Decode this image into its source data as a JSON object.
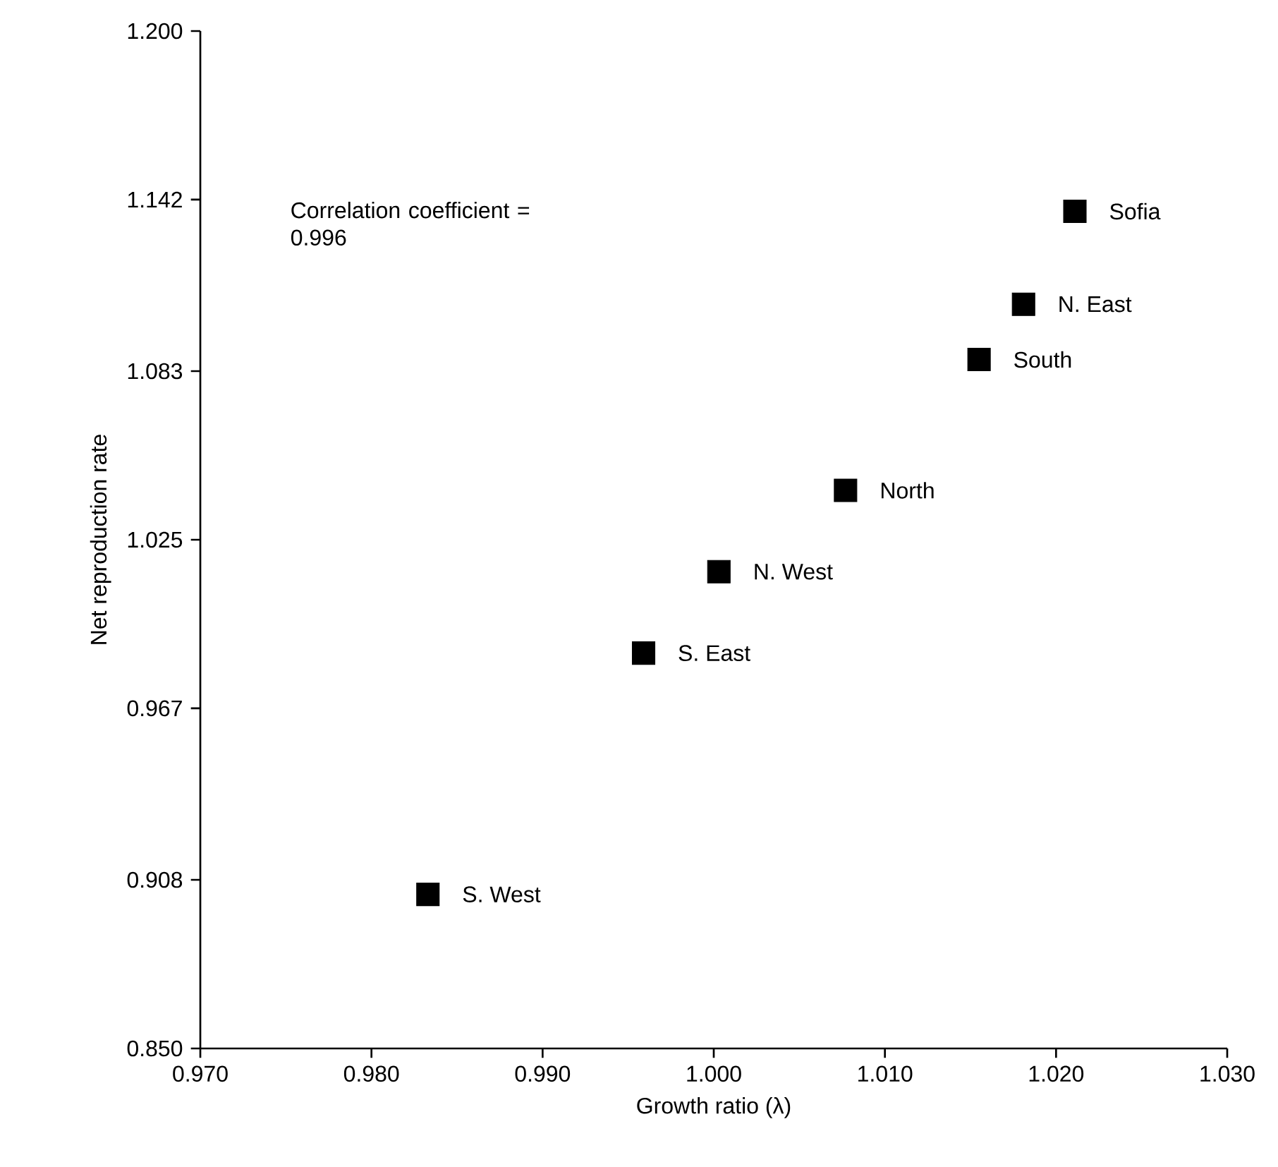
{
  "chart_data": {
    "type": "scatter",
    "xlabel": "Growth ratio (λ)",
    "ylabel": "Net reproduction rate",
    "x": [
      1.0211,
      1.0181,
      1.0155,
      1.0077,
      1.0003,
      0.9959,
      0.9833
    ],
    "values": [
      1.138,
      1.106,
      1.087,
      1.042,
      1.014,
      0.986,
      0.903
    ],
    "color": "#000000",
    "marker": "square",
    "xlim": [
      0.97,
      1.03
    ],
    "ylim": [
      0.85,
      1.2
    ],
    "xticks": [
      {
        "value": 0.97,
        "label": "0.970"
      },
      {
        "value": 0.98,
        "label": "0.980"
      },
      {
        "value": 0.99,
        "label": "0.990"
      },
      {
        "value": 1.0,
        "label": "1.000"
      },
      {
        "value": 1.01,
        "label": "1.010"
      },
      {
        "value": 1.02,
        "label": "1.020"
      },
      {
        "value": 1.03,
        "label": "1.030"
      }
    ],
    "yticks": [
      {
        "value": 0.85,
        "label": "0.850"
      },
      0.908,
      0.967,
      1.025,
      1.083,
      1.142,
      {
        "value": 1.2,
        "label": "1.200"
      }
    ],
    "annotations": [
      "Correlation coefficient = 0.996",
      {
        "text": "Sofia",
        "x": 1.0211,
        "y": 1.138
      },
      {
        "text": "N. East",
        "x": 1.0181,
        "y": 1.106
      },
      {
        "text": "South",
        "x": 1.0155,
        "y": 1.087
      },
      {
        "text": "North",
        "x": 1.0077,
        "y": 1.042
      },
      {
        "text": "N. West",
        "x": 1.0003,
        "y": 1.014
      },
      {
        "text": "S. East",
        "x": 0.9959,
        "y": 0.986
      },
      {
        "text": "S. West",
        "x": 0.9833,
        "y": 0.903
      }
    ]
  }
}
